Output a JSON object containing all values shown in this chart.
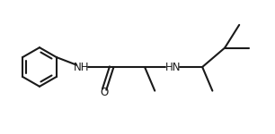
{
  "background": "#ffffff",
  "line_color": "#1a1a1a",
  "line_width": 1.5,
  "font_size": 8.5,
  "fig_width": 3.06,
  "fig_height": 1.5,
  "dpi": 100,
  "xlim": [
    0,
    9.5
  ],
  "ylim": [
    0.5,
    5.0
  ]
}
